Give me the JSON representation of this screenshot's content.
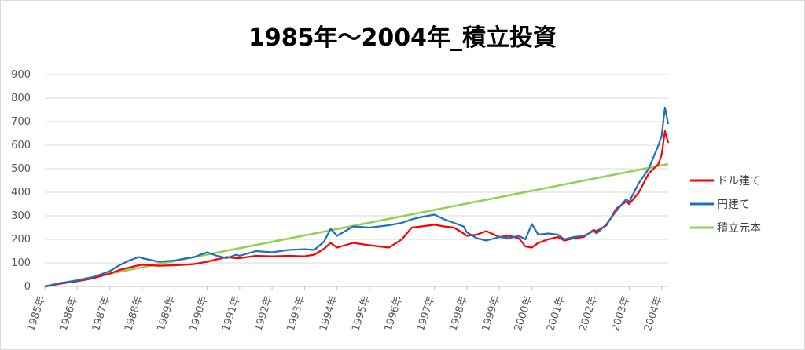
{
  "chart_data": {
    "type": "line",
    "title": "1985年～2004年_積立投資",
    "xlabel": "",
    "ylabel": "",
    "ylim": [
      0,
      900
    ],
    "yticks": [
      0,
      100,
      200,
      300,
      400,
      500,
      600,
      700,
      800,
      900
    ],
    "xlim": [
      1985,
      2004.2
    ],
    "xticks": [
      {
        "x": 1985,
        "label": "1985年"
      },
      {
        "x": 1986,
        "label": "1986年"
      },
      {
        "x": 1987,
        "label": "1987年"
      },
      {
        "x": 1988,
        "label": "1988年"
      },
      {
        "x": 1989,
        "label": "1989年"
      },
      {
        "x": 1990,
        "label": "1990年"
      },
      {
        "x": 1991,
        "label": "1991年"
      },
      {
        "x": 1992,
        "label": "1992年"
      },
      {
        "x": 1993,
        "label": "1993年"
      },
      {
        "x": 1994,
        "label": "1994年"
      },
      {
        "x": 1995,
        "label": "1995年"
      },
      {
        "x": 1996,
        "label": "1996年"
      },
      {
        "x": 1997,
        "label": "1997年"
      },
      {
        "x": 1998,
        "label": "1998年"
      },
      {
        "x": 1999,
        "label": "1999年"
      },
      {
        "x": 2000,
        "label": "2000年"
      },
      {
        "x": 2001,
        "label": "2001年"
      },
      {
        "x": 2002,
        "label": "2002年"
      },
      {
        "x": 2003,
        "label": "2003年"
      },
      {
        "x": 2004,
        "label": "2004年"
      }
    ],
    "grid": "horizontal",
    "legend_position": "right",
    "series": [
      {
        "name": "ドル建て",
        "color": "#FF0000",
        "x": [
          1985,
          1985.5,
          1986,
          1986.5,
          1987,
          1987.3,
          1987.6,
          1987.9,
          1988,
          1988.5,
          1989,
          1989.3,
          1989.6,
          1990,
          1990.3,
          1990.6,
          1990.9,
          1991,
          1991.5,
          1992,
          1992.5,
          1993,
          1993.3,
          1993.6,
          1993.8,
          1994,
          1994.5,
          1995,
          1995.3,
          1995.6,
          1996,
          1996.3,
          1996.6,
          1997,
          1997.3,
          1997.6,
          1997.9,
          1998,
          1998.3,
          1998.6,
          1999,
          1999.3,
          1999.6,
          1999.8,
          2000,
          2000.2,
          2000.5,
          2000.8,
          2001,
          2001.3,
          2001.6,
          2001.9,
          2002,
          2002.3,
          2002.6,
          2002.9,
          2003,
          2003.3,
          2003.6,
          2003.9,
          2004,
          2004.1,
          2004.2
        ],
        "y": [
          0,
          12,
          22,
          35,
          55,
          70,
          80,
          90,
          92,
          88,
          90,
          92,
          95,
          105,
          115,
          125,
          120,
          120,
          130,
          128,
          130,
          128,
          135,
          160,
          185,
          165,
          185,
          175,
          170,
          165,
          200,
          250,
          255,
          262,
          255,
          250,
          225,
          215,
          220,
          235,
          210,
          215,
          205,
          170,
          165,
          185,
          200,
          210,
          195,
          205,
          210,
          240,
          235,
          260,
          330,
          360,
          350,
          400,
          480,
          520,
          560,
          660,
          610
        ]
      },
      {
        "name": "円建て",
        "color": "#1F6FBF",
        "x": [
          1985,
          1985.5,
          1986,
          1986.5,
          1987,
          1987.3,
          1987.6,
          1987.9,
          1988,
          1988.5,
          1989,
          1989.3,
          1989.6,
          1990,
          1990.3,
          1990.6,
          1990.9,
          1991,
          1991.5,
          1992,
          1992.5,
          1993,
          1993.3,
          1993.6,
          1993.8,
          1994,
          1994.5,
          1995,
          1995.3,
          1995.6,
          1996,
          1996.3,
          1996.6,
          1997,
          1997.3,
          1997.6,
          1997.9,
          1998,
          1998.3,
          1998.6,
          1999,
          1999.3,
          1999.6,
          1999.8,
          2000,
          2000.2,
          2000.5,
          2000.8,
          2001,
          2001.3,
          2001.6,
          2001.9,
          2002,
          2002.3,
          2002.6,
          2002.9,
          2003,
          2003.3,
          2003.6,
          2003.9,
          2004,
          2004.1,
          2004.2
        ],
        "y": [
          0,
          15,
          25,
          40,
          65,
          90,
          110,
          125,
          120,
          105,
          110,
          118,
          125,
          145,
          130,
          120,
          135,
          130,
          150,
          145,
          155,
          158,
          155,
          190,
          245,
          215,
          255,
          250,
          255,
          260,
          270,
          285,
          295,
          305,
          285,
          270,
          255,
          230,
          205,
          195,
          210,
          205,
          215,
          200,
          265,
          220,
          225,
          220,
          200,
          210,
          215,
          235,
          225,
          265,
          320,
          370,
          360,
          440,
          500,
          600,
          640,
          760,
          690
        ]
      },
      {
        "name": "積立元本",
        "color": "#92D050",
        "x": [
          1985,
          2004.2
        ],
        "y": [
          0,
          520
        ]
      }
    ]
  }
}
